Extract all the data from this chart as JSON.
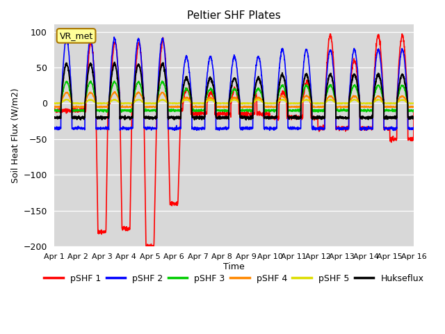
{
  "title": "Peltier SHF Plates",
  "xlabel": "Time",
  "ylabel": "Soil Heat Flux (W/m2)",
  "ylim": [
    -200,
    110
  ],
  "xlim": [
    0,
    15
  ],
  "yticks": [
    -200,
    -150,
    -100,
    -50,
    0,
    50,
    100
  ],
  "xtick_labels": [
    "Apr 1",
    "Apr 2",
    "Apr 3",
    "Apr 4",
    "Apr 5",
    "Apr 6",
    "Apr 7",
    "Apr 8",
    "Apr 9",
    "Apr 10",
    "Apr 11",
    "Apr 12",
    "Apr 13",
    "Apr 14",
    "Apr 15",
    "Apr 16"
  ],
  "series_colors": {
    "pSHF 1": "#FF0000",
    "pSHF 2": "#0000FF",
    "pSHF 3": "#00CC00",
    "pSHF 4": "#FF8800",
    "pSHF 5": "#DDDD00",
    "Hukseflux": "#000000"
  },
  "legend_label": "VR_met",
  "bg_color": "#D8D8D8",
  "fig_bg": "#FFFFFF"
}
